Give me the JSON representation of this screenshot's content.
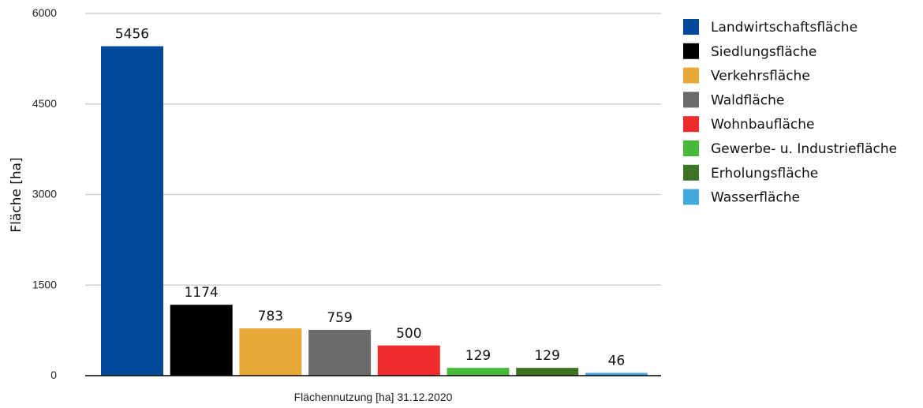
{
  "chart_data": {
    "type": "bar",
    "categories": [
      "Landwirtschaftsfläche",
      "Siedlungsfläche",
      "Verkehrsfläche",
      "Waldfläche",
      "Wohnbaufläche",
      "Gewerbe- u. Industriefläche",
      "Erholungsfläche",
      "Wasserfläche"
    ],
    "values": [
      5456,
      1174,
      783,
      759,
      500,
      129,
      129,
      46
    ],
    "value_labels": [
      "5456",
      "1174",
      "783",
      "759",
      "500",
      "129",
      "129",
      "46"
    ],
    "colors": [
      "#004a99",
      "#000000",
      "#e8a838",
      "#6b6b6b",
      "#f02b2b",
      "#48b83a",
      "#3c7327",
      "#45a8dc"
    ],
    "title": "",
    "xlabel": "Flächennutzung [ha] 31.12.2020",
    "ylabel": "Fläche [ha]",
    "ylim": [
      0,
      6000
    ],
    "yticks": [
      0,
      1500,
      3000,
      4500,
      6000
    ],
    "ytick_labels": [
      "0",
      "1500",
      "3000",
      "4500",
      "6000"
    ],
    "grid": true,
    "legend_position": "right"
  }
}
